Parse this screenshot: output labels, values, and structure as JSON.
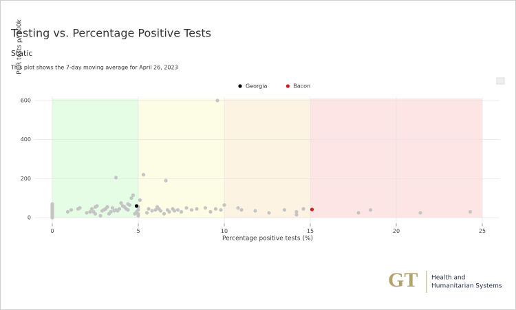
{
  "header": {
    "title": "Testing vs. Percentage Positive Tests",
    "subtitle": "Static",
    "description": "This plot shows the 7-day moving average for April 26, 2023"
  },
  "chart_data": {
    "type": "scatter",
    "x_label": "Percentage positive tests (%)",
    "y_label": "PCR tests p/ 100k",
    "xlim": [
      -1,
      26
    ],
    "ylim": [
      -30,
      620
    ],
    "xticks": [
      0,
      5,
      10,
      15,
      20,
      25
    ],
    "yticks": [
      0,
      200,
      400,
      600
    ],
    "grid": true,
    "legend": "top",
    "zones": [
      {
        "x": [
          0,
          5
        ],
        "y": [
          0,
          610
        ],
        "color": "#e5fce5"
      },
      {
        "x": [
          5,
          10
        ],
        "y": [
          0,
          610
        ],
        "color": "#fdfde6"
      },
      {
        "x": [
          10,
          15
        ],
        "y": [
          0,
          610
        ],
        "color": "#fcf3e3"
      },
      {
        "x": [
          15,
          25
        ],
        "y": [
          0,
          610
        ],
        "color": "#fde5e5"
      }
    ],
    "series": [
      {
        "color": "#c4c4c4",
        "x": [
          0,
          0,
          0,
          0,
          0,
          0,
          0,
          0,
          0,
          0,
          0,
          0,
          0,
          0,
          0,
          0.9,
          1.1,
          1.5,
          1.6,
          2.0,
          2.2,
          2.3,
          2.4,
          2.5,
          2.5,
          2.6,
          2.8,
          2.9,
          3.0,
          3.1,
          3.2,
          3.3,
          3.4,
          3.5,
          3.6,
          3.7,
          3.7,
          3.8,
          3.9,
          4.0,
          4.1,
          4.2,
          4.3,
          4.4,
          4.4,
          4.5,
          4.6,
          4.7,
          4.8,
          4.9,
          5.0,
          5.0,
          5.0,
          5.0,
          5.1,
          5.3,
          5.5,
          5.6,
          5.8,
          6.0,
          6.1,
          6.2,
          6.3,
          6.5,
          6.6,
          6.7,
          6.8,
          7.0,
          7.1,
          7.3,
          7.5,
          7.8,
          8.1,
          8.4,
          8.9,
          9.2,
          9.5,
          9.6,
          9.8,
          10.0,
          10.8,
          11.0,
          11.8,
          12.6,
          13.5,
          14.2,
          14.2,
          14.6,
          17.8,
          18.5,
          21.4,
          24.3
        ],
        "values": [
          0,
          5,
          10,
          15,
          20,
          25,
          30,
          35,
          40,
          45,
          50,
          55,
          60,
          65,
          70,
          30,
          40,
          45,
          50,
          25,
          30,
          45,
          30,
          55,
          20,
          60,
          10,
          35,
          40,
          45,
          55,
          20,
          30,
          50,
          35,
          40,
          205,
          35,
          45,
          75,
          60,
          55,
          45,
          40,
          70,
          65,
          100,
          115,
          20,
          30,
          55,
          20,
          40,
          10,
          90,
          220,
          25,
          45,
          35,
          40,
          55,
          45,
          35,
          20,
          190,
          40,
          30,
          45,
          35,
          40,
          30,
          50,
          40,
          45,
          50,
          30,
          45,
          600,
          40,
          65,
          50,
          40,
          35,
          25,
          40,
          30,
          15,
          45,
          25,
          40,
          25,
          30
        ]
      },
      {
        "name": "Georgia",
        "color": "#000000",
        "x": [
          4.9
        ],
        "values": [
          60
        ]
      },
      {
        "name": "Bacon",
        "color": "#d7191c",
        "x": [
          15.1
        ],
        "values": [
          42
        ]
      }
    ]
  },
  "logo": {
    "mark": "GT",
    "lines": [
      "Health and",
      "Humanitarian Systems"
    ]
  }
}
